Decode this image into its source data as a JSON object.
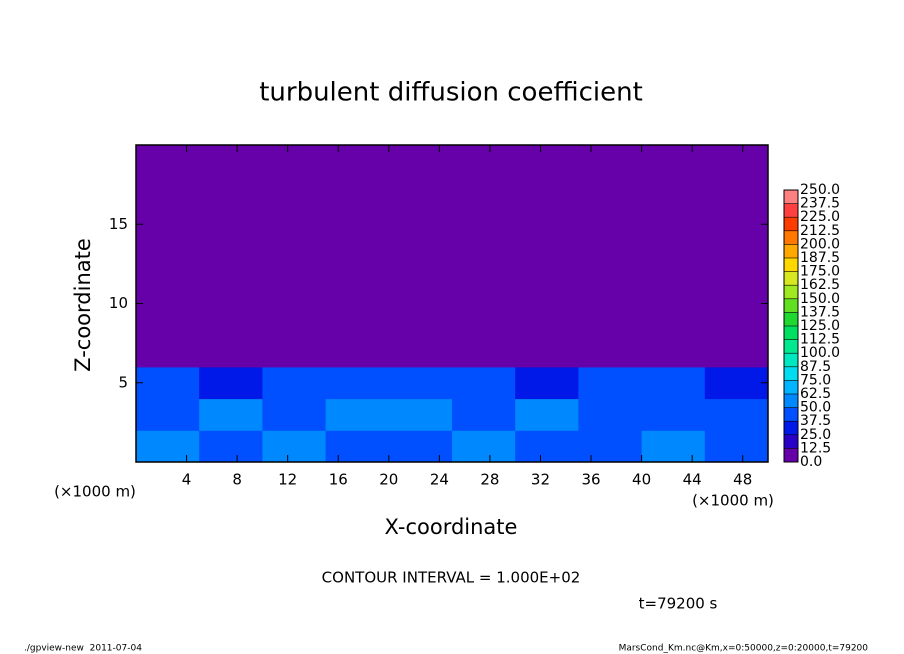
{
  "chart_data": {
    "type": "contour",
    "title": "turbulent diffusion coefficient",
    "xlabel": "X-coordinate",
    "ylabel": "Z-coordinate",
    "x_unit": "(×1000 m)",
    "y_unit": "(×1000 m)",
    "xlim": [
      0,
      50
    ],
    "ylim": [
      0,
      20
    ],
    "xticks": [
      4,
      8,
      12,
      16,
      20,
      24,
      28,
      32,
      36,
      40,
      44,
      48
    ],
    "yticks": [
      5,
      10,
      15
    ],
    "field": {
      "x": [
        0,
        5,
        10,
        15,
        20,
        25,
        30,
        35,
        40,
        45,
        50
      ],
      "z": [
        0,
        2,
        4,
        6,
        8,
        10,
        12,
        14,
        16,
        18,
        20
      ],
      "values": [
        [
          50,
          45,
          50,
          40,
          45,
          50,
          45,
          40,
          50,
          45
        ],
        [
          45,
          50,
          40,
          50,
          55,
          45,
          50,
          45,
          40,
          45
        ],
        [
          40,
          35,
          45,
          40,
          45,
          40,
          35,
          45,
          40,
          35
        ],
        [
          0,
          0,
          0,
          5,
          0,
          0,
          0,
          0,
          0,
          0
        ],
        [
          0,
          0,
          0,
          0,
          0,
          0,
          0,
          0,
          0,
          0
        ],
        [
          0,
          0,
          0,
          0,
          0,
          0,
          0,
          0,
          0,
          0
        ],
        [
          0,
          0,
          0,
          0,
          0,
          0,
          0,
          0,
          0,
          0
        ],
        [
          0,
          0,
          0,
          0,
          0,
          0,
          0,
          0,
          0,
          0
        ],
        [
          0,
          0,
          0,
          0,
          0,
          0,
          0,
          0,
          0,
          0
        ],
        [
          0,
          0,
          0,
          0,
          0,
          0,
          0,
          0,
          0,
          0
        ]
      ]
    },
    "levels": [
      {
        "value": 0,
        "label": "0.0"
      },
      12.5,
      {
        "value": 25,
        "label": "25.0"
      },
      37.5,
      {
        "value": 50,
        "label": "50.0"
      },
      62.5,
      {
        "value": 75,
        "label": "75.0"
      },
      87.5,
      {
        "value": 100,
        "label": "100.0"
      },
      112.5,
      {
        "value": 125,
        "label": "125.0"
      },
      137.5,
      {
        "value": 150,
        "label": "150.0"
      },
      162.5,
      {
        "value": 175,
        "label": "175.0"
      },
      187.5,
      {
        "value": 200,
        "label": "200.0"
      },
      212.5,
      {
        "value": 225,
        "label": "225.0"
      },
      237.5,
      {
        "value": 250,
        "label": "250.0"
      }
    ],
    "colors": [
      "#6600a8",
      "#2a00c8",
      "#0018e8",
      "#0050ff",
      "#0088ff",
      "#00b4ff",
      "#00dcf0",
      "#00e8c0",
      "#00e890",
      "#00e060",
      "#20d830",
      "#60e020",
      "#a0e820",
      "#d8e820",
      "#ffd800",
      "#ffa800",
      "#ff7800",
      "#ff3c00",
      "#ff4040",
      "#ff8080"
    ],
    "contour_interval": "CONTOUR INTERVAL = 1.000E+02",
    "time_label": "t=79200 s",
    "footer_left": "./gpview-new  2011-07-04",
    "footer_right": "MarsCond_Km.nc@Km,x=0:50000,z=0:20000,t=79200"
  }
}
